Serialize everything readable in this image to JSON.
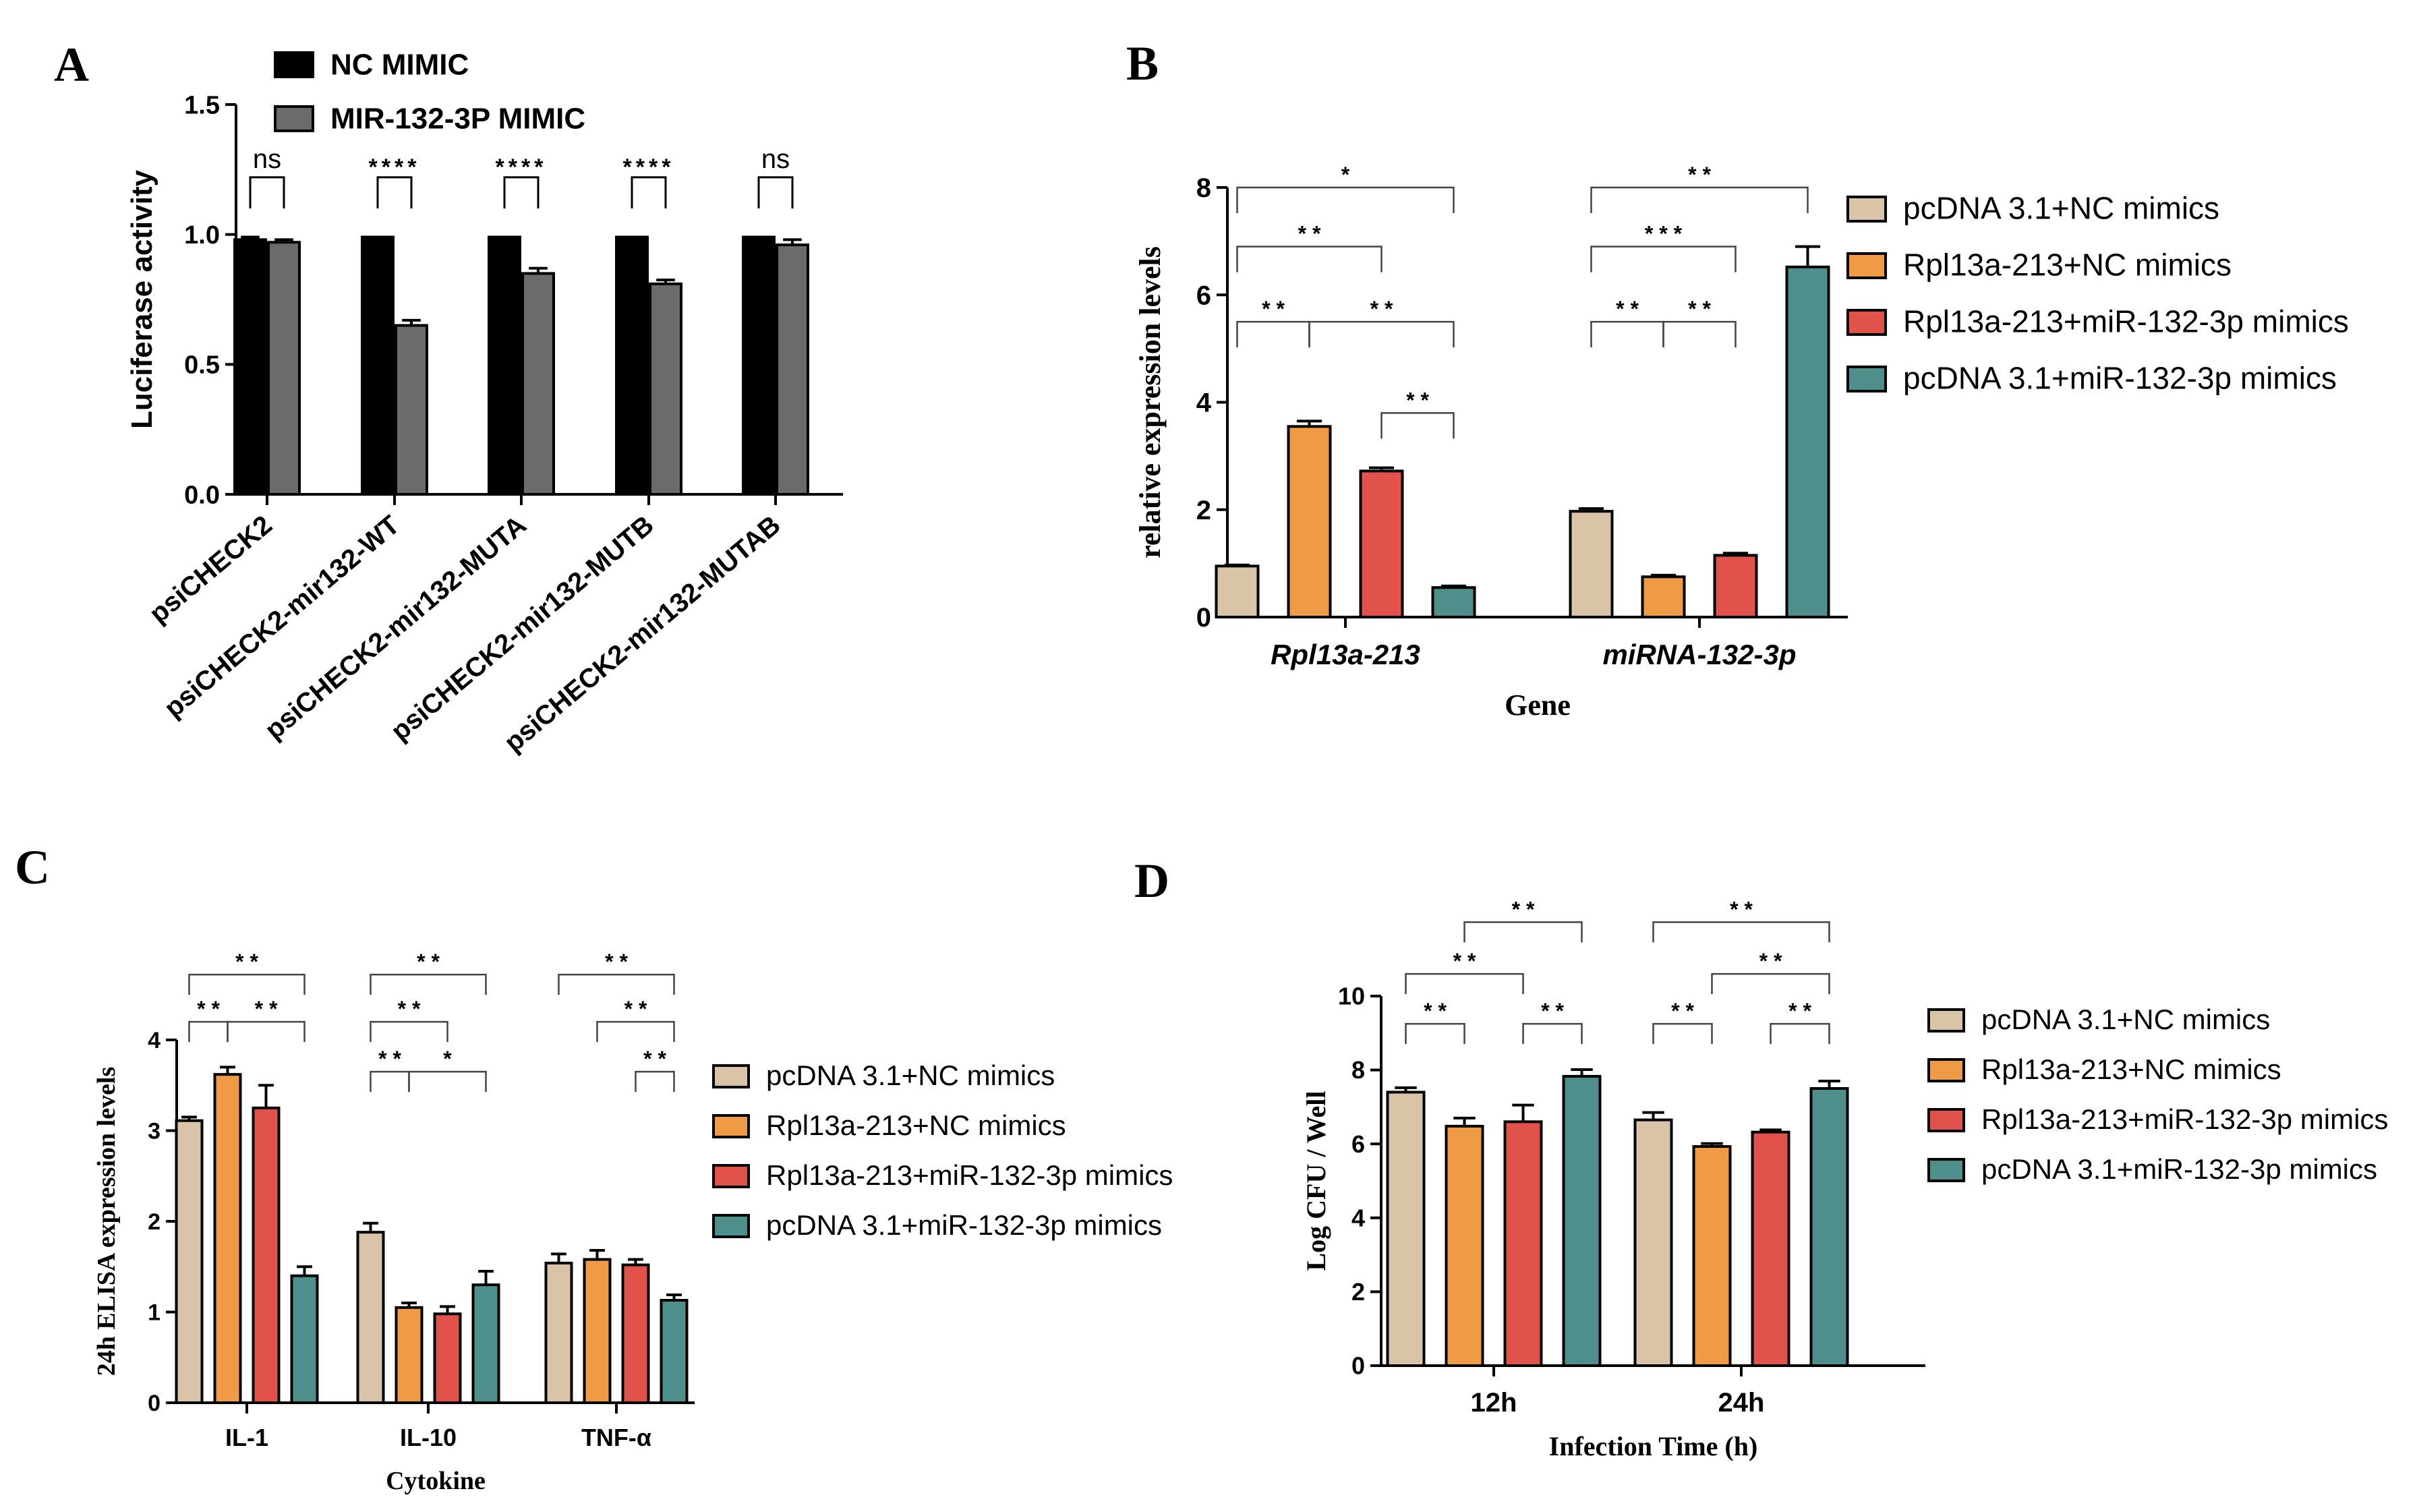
{
  "chart_data": [
    {
      "panel": "A",
      "type": "bar",
      "ylabel": "Luciferase activity",
      "xlabel": "",
      "ylim": [
        0,
        1.5
      ],
      "yticks": [
        "0.0",
        "0.5",
        "1.0",
        "1.5"
      ],
      "categories": [
        "psiCHECK2",
        "psiCHECK2-mir132-WT",
        "psiCHECK2-mir132-MUTA",
        "psiCHECK2-mir132-MUTB",
        "psiCHECK2-mir132-MUTAB"
      ],
      "series": [
        {
          "name": "NC MIMIC",
          "color": "#000000",
          "values": [
            0.98,
            0.99,
            0.99,
            0.99,
            0.99
          ],
          "errors": [
            0.01,
            0,
            0,
            0,
            0
          ]
        },
        {
          "name": "MIR-132-3P MIMIC",
          "color": "#6b6b6b",
          "values": [
            0.97,
            0.65,
            0.85,
            0.81,
            0.96
          ],
          "errors": [
            0.01,
            0.02,
            0.02,
            0.015,
            0.02
          ]
        }
      ],
      "significance": [
        "ns",
        "****",
        "****",
        "****",
        "ns"
      ]
    },
    {
      "panel": "B",
      "type": "bar",
      "ylabel": "relative expression levels",
      "xlabel": "Gene",
      "ylim": [
        0,
        8
      ],
      "yticks": [
        "0",
        "2",
        "4",
        "6",
        "8"
      ],
      "categories": [
        "Rpl13a-213",
        "miRNA-132-3p"
      ],
      "series": [
        {
          "name": "pcDNA 3.1+NC mimics",
          "color": "#d9c4a8",
          "values": [
            0.95,
            1.97
          ],
          "errors": [
            0.02,
            0.05
          ]
        },
        {
          "name": "Rpl13a-213+NC mimics",
          "color": "#ef9a45",
          "values": [
            3.55,
            0.75
          ],
          "errors": [
            0.1,
            0.03
          ]
        },
        {
          "name": "Rpl13a-213+miR-132-3p mimics",
          "color": "#e0524a",
          "values": [
            2.72,
            1.15
          ],
          "errors": [
            0.06,
            0.04
          ]
        },
        {
          "name": "pcDNA 3.1+miR-132-3p mimics",
          "color": "#4f8f8b",
          "values": [
            0.55,
            6.52
          ],
          "errors": [
            0.03,
            0.38
          ]
        }
      ],
      "brackets": [
        {
          "group": 0,
          "from": 0,
          "to": 3,
          "level": 8.0,
          "label": "*"
        },
        {
          "group": 0,
          "from": 0,
          "to": 2,
          "level": 6.9,
          "label": "* *"
        },
        {
          "group": 0,
          "from": 0,
          "to": 1,
          "level": 5.5,
          "label": "* *"
        },
        {
          "group": 0,
          "from": 1,
          "to": 3,
          "level": 5.5,
          "label": "* *"
        },
        {
          "group": 0,
          "from": 2,
          "to": 3,
          "level": 3.8,
          "label": "* *"
        },
        {
          "group": 1,
          "from": 0,
          "to": 3,
          "level": 8.0,
          "label": "* *"
        },
        {
          "group": 1,
          "from": 0,
          "to": 2,
          "level": 6.9,
          "label": "* * *"
        },
        {
          "group": 1,
          "from": 0,
          "to": 1,
          "level": 5.5,
          "label": "* *"
        },
        {
          "group": 1,
          "from": 1,
          "to": 2,
          "level": 5.5,
          "label": "* *"
        }
      ]
    },
    {
      "panel": "C",
      "type": "bar",
      "ylabel": "24h ELISA expression levels",
      "xlabel": "Cytokine",
      "ylim": [
        0,
        4
      ],
      "yticks": [
        "0",
        "1",
        "2",
        "3",
        "4"
      ],
      "categories": [
        "IL-1",
        "IL-10",
        "TNF-α"
      ],
      "series": [
        {
          "name": "pcDNA 3.1+NC mimics",
          "color": "#d9c4a8",
          "values": [
            3.11,
            1.88,
            1.54
          ],
          "errors": [
            0.04,
            0.1,
            0.1
          ]
        },
        {
          "name": "Rpl13a-213+NC mimics",
          "color": "#ef9a45",
          "values": [
            3.62,
            1.05,
            1.58
          ],
          "errors": [
            0.08,
            0.05,
            0.1
          ]
        },
        {
          "name": "Rpl13a-213+miR-132-3p mimics",
          "color": "#e0524a",
          "values": [
            3.25,
            0.98,
            1.52
          ],
          "errors": [
            0.25,
            0.08,
            0.06
          ]
        },
        {
          "name": "pcDNA 3.1+miR-132-3p mimics",
          "color": "#4f8f8b",
          "values": [
            1.4,
            1.3,
            1.13
          ],
          "errors": [
            0.1,
            0.15,
            0.06
          ]
        }
      ],
      "brackets": [
        {
          "group": 0,
          "from": 0,
          "to": 3,
          "level": 4.72,
          "label": "* *"
        },
        {
          "group": 0,
          "from": 0,
          "to": 1,
          "level": 4.2,
          "label": "* *"
        },
        {
          "group": 0,
          "from": 1,
          "to": 3,
          "level": 4.2,
          "label": "* *"
        },
        {
          "group": 1,
          "from": 0,
          "to": 3,
          "level": 4.72,
          "label": "* *"
        },
        {
          "group": 1,
          "from": 0,
          "to": 2,
          "level": 4.2,
          "label": "* *"
        },
        {
          "group": 1,
          "from": 0,
          "to": 1,
          "level": 3.65,
          "label": "* *"
        },
        {
          "group": 1,
          "from": 1,
          "to": 3,
          "level": 3.65,
          "label": "*"
        },
        {
          "group": 2,
          "from": 0,
          "to": 3,
          "level": 4.72,
          "label": "* *"
        },
        {
          "group": 2,
          "from": 1,
          "to": 3,
          "level": 4.2,
          "label": "* *"
        },
        {
          "group": 2,
          "from": 2,
          "to": 3,
          "level": 3.65,
          "label": "* *"
        }
      ]
    },
    {
      "panel": "D",
      "type": "bar",
      "ylabel": "Log CFU / Well",
      "xlabel": "Infection Time (h)",
      "ylim": [
        0,
        10
      ],
      "yticks": [
        "0",
        "2",
        "4",
        "6",
        "8",
        "10"
      ],
      "categories": [
        "12h",
        "24h"
      ],
      "series": [
        {
          "name": "pcDNA 3.1+NC mimics",
          "color": "#d9c4a8",
          "values": [
            7.4,
            6.65
          ],
          "errors": [
            0.12,
            0.2
          ]
        },
        {
          "name": "Rpl13a-213+NC mimics",
          "color": "#ef9a45",
          "values": [
            6.48,
            5.93
          ],
          "errors": [
            0.22,
            0.08
          ]
        },
        {
          "name": "Rpl13a-213+miR-132-3p mimics",
          "color": "#e0524a",
          "values": [
            6.6,
            6.32
          ],
          "errors": [
            0.45,
            0.06
          ]
        },
        {
          "name": "pcDNA 3.1+miR-132-3p mimics",
          "color": "#4f8f8b",
          "values": [
            7.83,
            7.5
          ],
          "errors": [
            0.18,
            0.2
          ]
        }
      ],
      "brackets": [
        {
          "group": 0,
          "from": 1,
          "to": 3,
          "level": 12.0,
          "label": "* *"
        },
        {
          "group": 0,
          "from": 0,
          "to": 2,
          "level": 10.6,
          "label": "* *"
        },
        {
          "group": 0,
          "from": 0,
          "to": 1,
          "level": 9.25,
          "label": "* *"
        },
        {
          "group": 0,
          "from": 2,
          "to": 3,
          "level": 9.25,
          "label": "* *"
        },
        {
          "group": 1,
          "from": 0,
          "to": 3,
          "level": 12.0,
          "label": "* *"
        },
        {
          "group": 1,
          "from": 1,
          "to": 3,
          "level": 10.6,
          "label": "* *"
        },
        {
          "group": 1,
          "from": 0,
          "to": 1,
          "level": 9.25,
          "label": "* *"
        },
        {
          "group": 1,
          "from": 2,
          "to": 3,
          "level": 9.25,
          "label": "* *"
        }
      ]
    }
  ],
  "panel_labels": [
    "A",
    "B",
    "C",
    "D"
  ]
}
